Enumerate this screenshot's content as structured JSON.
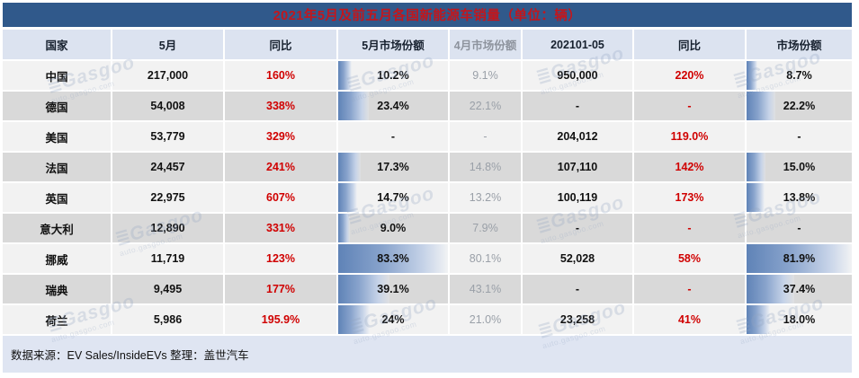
{
  "title": "2021年5月及前五月各国新能源车销量（单位：辆）",
  "colors": {
    "title-bg": "#30598b",
    "title-red": "#c3161c",
    "header-bg": "#dce3f0",
    "row-light": "#f2f2f2",
    "row-dark": "#d9d9d9",
    "footer-bg": "#dfe5f2",
    "data-red": "#d00000",
    "bar-blue": "#5f83b7"
  },
  "table": {
    "headers": [
      "国家",
      "5月",
      "同比",
      "5月市场份额",
      "4月市场份额",
      "202101-05",
      "同比",
      "市场份额"
    ],
    "bar_max": {
      "may_share": 83.3,
      "ytd_share": 81.9
    },
    "rows": [
      {
        "country": "中国",
        "may": "217,000",
        "may_yoy": "160%",
        "may_share": "10.2%",
        "apr_share": "9.1%",
        "ytd": "950,000",
        "ytd_yoy": "220%",
        "ytd_share": "8.7%"
      },
      {
        "country": "德国",
        "may": "54,008",
        "may_yoy": "338%",
        "may_share": "23.4%",
        "apr_share": "22.1%",
        "ytd": "-",
        "ytd_yoy": "-",
        "ytd_share": "22.2%"
      },
      {
        "country": "美国",
        "may": "53,779",
        "may_yoy": "329%",
        "may_share": "-",
        "apr_share": "-",
        "ytd": "204,012",
        "ytd_yoy": "119.0%",
        "ytd_share": "-"
      },
      {
        "country": "法国",
        "may": "24,457",
        "may_yoy": "241%",
        "may_share": "17.3%",
        "apr_share": "14.8%",
        "ytd": "107,110",
        "ytd_yoy": "142%",
        "ytd_share": "15.0%"
      },
      {
        "country": "英国",
        "may": "22,975",
        "may_yoy": "607%",
        "may_share": "14.7%",
        "apr_share": "13.2%",
        "ytd": "100,119",
        "ytd_yoy": "173%",
        "ytd_share": "13.8%"
      },
      {
        "country": "意大利",
        "may": "12,890",
        "may_yoy": "331%",
        "may_share": "9.0%",
        "apr_share": "7.9%",
        "ytd": "-",
        "ytd_yoy": "-",
        "ytd_share": "-"
      },
      {
        "country": "挪威",
        "may": "11,719",
        "may_yoy": "123%",
        "may_share": "83.3%",
        "apr_share": "80.1%",
        "ytd": "52,028",
        "ytd_yoy": "58%",
        "ytd_share": "81.9%"
      },
      {
        "country": "瑞典",
        "may": "9,495",
        "may_yoy": "177%",
        "may_share": "39.1%",
        "apr_share": "43.1%",
        "ytd": "-",
        "ytd_yoy": "-",
        "ytd_share": "37.4%"
      },
      {
        "country": "荷兰",
        "may": "5,986",
        "may_yoy": "195.9%",
        "may_share": "24%",
        "apr_share": "21.0%",
        "ytd": "23,258",
        "ytd_yoy": "41%",
        "ytd_share": "18.0%"
      }
    ]
  },
  "chart_data": {
    "type": "table",
    "title": "2021年5月及前五月各国新能源车销量（单位：辆）",
    "columns": [
      "国家",
      "5月",
      "同比",
      "5月市场份额",
      "4月市场份额",
      "202101-05",
      "同比",
      "市场份额"
    ],
    "categories": [
      "中国",
      "德国",
      "美国",
      "法国",
      "英国",
      "意大利",
      "挪威",
      "瑞典",
      "荷兰"
    ],
    "series": [
      {
        "name": "5月销量",
        "values": [
          217000,
          54008,
          53779,
          24457,
          22975,
          12890,
          11719,
          9495,
          5986
        ]
      },
      {
        "name": "5月同比%",
        "values": [
          160,
          338,
          329,
          241,
          607,
          331,
          123,
          177,
          195.9
        ]
      },
      {
        "name": "5月市场份额%",
        "values": [
          10.2,
          23.4,
          null,
          17.3,
          14.7,
          9.0,
          83.3,
          39.1,
          24
        ]
      },
      {
        "name": "4月市场份额%",
        "values": [
          9.1,
          22.1,
          null,
          14.8,
          13.2,
          7.9,
          80.1,
          43.1,
          21.0
        ]
      },
      {
        "name": "202101-05销量",
        "values": [
          950000,
          null,
          204012,
          107110,
          100119,
          null,
          52028,
          null,
          23258
        ]
      },
      {
        "name": "202101-05同比%",
        "values": [
          220,
          null,
          119.0,
          142,
          173,
          null,
          58,
          null,
          41
        ]
      },
      {
        "name": "202101-05市场份额%",
        "values": [
          8.7,
          22.2,
          null,
          15.0,
          13.8,
          null,
          81.9,
          37.4,
          18.0
        ]
      }
    ]
  },
  "footer": {
    "text": "数据来源：EV Sales/InsideEVs 整理：盖世汽车"
  },
  "watermark": {
    "logo": "≣",
    "line1": "Gasgoo",
    "line2": "auto.gasgoo.com"
  }
}
